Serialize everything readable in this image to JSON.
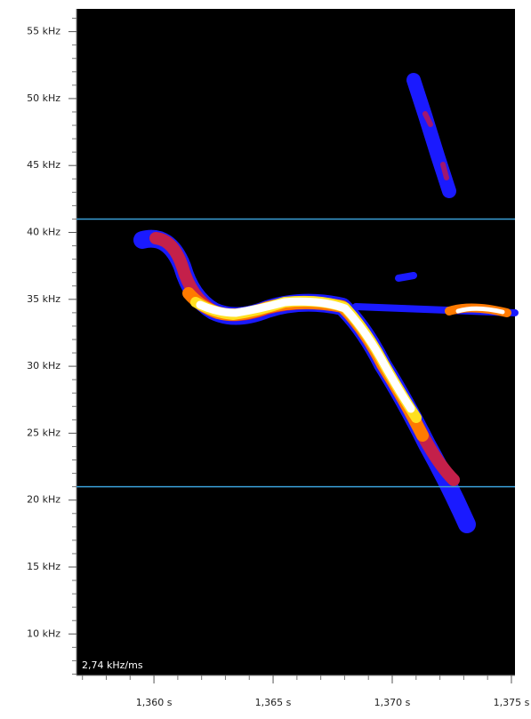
{
  "chart_data": {
    "type": "spectrogram",
    "annotation": "2,74 kHz/ms",
    "xlim": [
      1.35675,
      1.37515
    ],
    "ylim": [
      6.9,
      56.7
    ],
    "xticks": [
      {
        "value": 1.36,
        "label": "1,360 s"
      },
      {
        "value": 1.365,
        "label": "1,365 s"
      },
      {
        "value": 1.37,
        "label": "1,370 s"
      },
      {
        "value": 1.375,
        "label": "1,375 s"
      }
    ],
    "xticks_minor": [
      1.357,
      1.358,
      1.359,
      1.361,
      1.362,
      1.363,
      1.364,
      1.366,
      1.367,
      1.368,
      1.369,
      1.371,
      1.372,
      1.373,
      1.374
    ],
    "yticks": [
      {
        "value": 10,
        "label": "10 kHz"
      },
      {
        "value": 15,
        "label": "15 kHz"
      },
      {
        "value": 20,
        "label": "20 kHz"
      },
      {
        "value": 25,
        "label": "25 kHz"
      },
      {
        "value": 30,
        "label": "30 kHz"
      },
      {
        "value": 35,
        "label": "35 kHz"
      },
      {
        "value": 40,
        "label": "40 kHz"
      },
      {
        "value": 45,
        "label": "45 kHz"
      },
      {
        "value": 50,
        "label": "50 kHz"
      },
      {
        "value": 55,
        "label": "55 kHz"
      }
    ],
    "yticks_minor": [
      7,
      8,
      9,
      11,
      12,
      13,
      14,
      16,
      17,
      18,
      19,
      21,
      22,
      23,
      24,
      26,
      27,
      28,
      29,
      31,
      32,
      33,
      34,
      36,
      37,
      38,
      39,
      41,
      42,
      43,
      44,
      46,
      47,
      48,
      49,
      51,
      52,
      53,
      54,
      56
    ],
    "reference_lines": [
      41,
      21
    ],
    "reference_color": "#3a9fd8",
    "background": "#000000"
  }
}
